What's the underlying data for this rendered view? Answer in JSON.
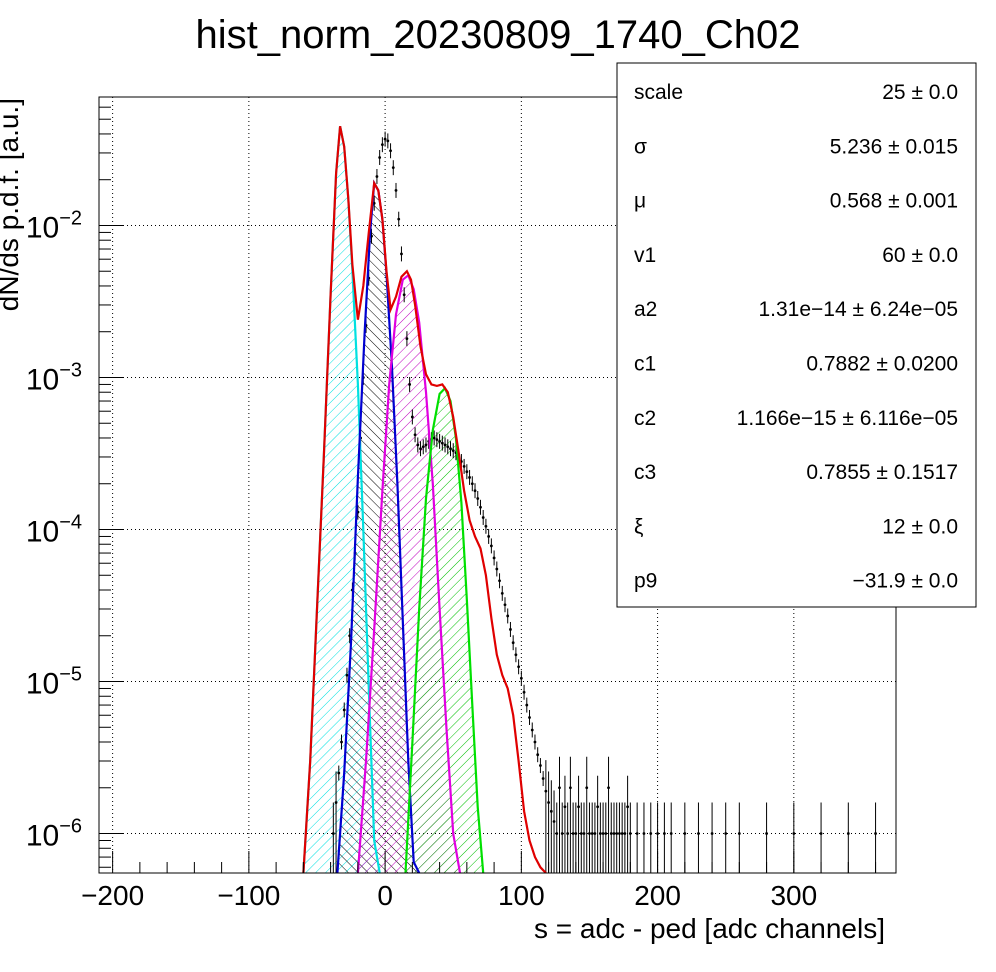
{
  "chart_data": {
    "type": "scatter",
    "title": "hist_norm_20230809_1740_Ch02",
    "xlabel": "s = adc - ped [adc channels]",
    "ylabel": "dN/ds p.d.f. [a.u.]",
    "xlim": [
      -210,
      375
    ],
    "ylim": [
      5.5e-07,
      0.07
    ],
    "yscale": "log",
    "grid": true,
    "x_ticks": [
      -200,
      -100,
      0,
      100,
      200,
      300
    ],
    "x_tick_labels": [
      "−200",
      "−100",
      "0",
      "100",
      "200",
      "300"
    ],
    "y_ticks": [
      1e-06,
      1e-05,
      0.0001,
      0.001,
      0.01
    ],
    "y_tick_labels": [
      {
        "base": "10",
        "exp": "−6"
      },
      {
        "base": "10",
        "exp": "−5"
      },
      {
        "base": "10",
        "exp": "−4"
      },
      {
        "base": "10",
        "exp": "−3"
      },
      {
        "base": "10",
        "exp": "−2"
      }
    ],
    "stats_box": {
      "placement": "top-right",
      "rows": [
        {
          "name": "scale",
          "value": "25 ± 0.0"
        },
        {
          "name": "σ",
          "value": "5.236 ± 0.015"
        },
        {
          "name": "μ",
          "value": "0.568 ± 0.001"
        },
        {
          "name": "v1",
          "value": "60 ± 0.0"
        },
        {
          "name": "a2",
          "value": "1.31e−14 ± 6.24e−05"
        },
        {
          "name": "c1",
          "value": "0.7882 ± 0.0200"
        },
        {
          "name": "c2",
          "value": "1.166e−15 ± 6.116e−05"
        },
        {
          "name": "c3",
          "value": "0.7855 ± 0.1517"
        },
        {
          "name": "ξ",
          "value": "12 ± 0.0"
        },
        {
          "name": "p9",
          "value": "−31.9 ± 0.0"
        }
      ]
    },
    "series": [
      {
        "kind": "points",
        "color": "#000000",
        "x": [
          -38,
          -36,
          -34,
          -32,
          -30,
          -28,
          -26,
          -24,
          -22,
          -20,
          -18,
          -16,
          -14,
          -12,
          -10,
          -8,
          -6,
          -4,
          -2,
          0,
          2,
          4,
          6,
          8,
          10,
          12,
          14,
          16,
          18,
          20,
          22,
          24,
          26,
          28,
          30,
          32,
          34,
          36,
          38,
          40,
          42,
          44,
          46,
          48,
          50,
          52,
          54,
          56,
          58,
          60,
          62,
          64,
          66,
          68,
          70,
          72,
          74,
          76,
          78,
          80,
          82,
          84,
          86,
          88,
          90,
          92,
          94,
          96,
          98,
          100,
          102,
          104,
          106,
          108,
          110,
          112,
          114,
          116,
          118,
          120,
          122,
          124,
          126,
          128,
          130,
          132,
          134,
          136,
          138,
          140,
          142,
          144,
          146,
          148,
          150,
          152,
          154,
          156,
          158,
          160,
          162,
          164,
          166,
          168,
          170,
          172,
          174,
          176,
          178,
          180,
          185,
          190,
          195,
          200,
          205,
          210,
          220,
          230,
          240,
          250,
          260,
          280,
          300,
          320,
          340,
          360
        ],
        "y": [
          1e-06,
          1.6e-06,
          2.5e-06,
          4e-06,
          6.5e-06,
          1.1e-05,
          2e-05,
          4e-05,
          7e-05,
          0.00013,
          0.0004,
          0.001,
          0.0022,
          0.0045,
          0.0085,
          0.014,
          0.021,
          0.028,
          0.034,
          0.037,
          0.036,
          0.031,
          0.024,
          0.017,
          0.011,
          0.0065,
          0.0035,
          0.0018,
          0.0009,
          0.00055,
          0.00042,
          0.00036,
          0.00034,
          0.00035,
          0.00036,
          0.00038,
          0.00039,
          0.0004,
          0.00039,
          0.00038,
          0.00037,
          0.00036,
          0.00035,
          0.00034,
          0.00033,
          0.00032,
          0.0003,
          0.00028,
          0.00026,
          0.00024,
          0.00022,
          0.0002,
          0.00018,
          0.00016,
          0.00014,
          0.00012,
          0.000105,
          9e-05,
          7.8e-05,
          6.5e-05,
          5.5e-05,
          4.6e-05,
          3.8e-05,
          3.2e-05,
          2.7e-05,
          2.2e-05,
          1.8e-05,
          1.5e-05,
          1.25e-05,
          1.05e-05,
          8.5e-06,
          7e-06,
          5.8e-06,
          4.8e-06,
          4e-06,
          3.3e-06,
          2.8e-06,
          2.3e-06,
          1.9e-06,
          1.6e-06,
          1.4e-06,
          1.2e-06,
          1e-06,
          2e-06,
          1e-06,
          1.5e-06,
          1e-06,
          2e-06,
          1e-06,
          1e-06,
          1.5e-06,
          1e-06,
          1e-06,
          2e-06,
          1e-06,
          1e-06,
          1e-06,
          1.5e-06,
          1e-06,
          1e-06,
          1e-06,
          2e-06,
          1e-06,
          1e-06,
          1e-06,
          1e-06,
          1e-06,
          1e-06,
          1.5e-06,
          1e-06,
          1e-06,
          1e-06,
          1e-06,
          1e-06,
          1e-06,
          1e-06,
          1e-06,
          1e-06,
          1e-06,
          1e-06,
          1e-06,
          1e-06,
          1e-06,
          1e-06,
          1e-06,
          1e-06
        ]
      },
      {
        "kind": "component",
        "color": "#00e0e0",
        "fill": "hatch",
        "x": [
          -60,
          -55,
          -50,
          -45,
          -40,
          -36,
          -33,
          -30,
          -27,
          -24,
          -20,
          -16,
          -12,
          -8,
          -4
        ],
        "y": [
          5.5e-07,
          3e-06,
          3e-05,
          0.0003,
          0.0035,
          0.022,
          0.045,
          0.033,
          0.015,
          0.005,
          0.0009,
          0.0001,
          9e-06,
          9e-07,
          5.5e-07
        ]
      },
      {
        "kind": "component",
        "color": "#0000d0",
        "fill": "hatch",
        "x": [
          -35,
          -30,
          -25,
          -20,
          -15,
          -11,
          -8,
          -5,
          -2,
          1,
          5,
          9,
          13,
          17,
          21,
          25
        ],
        "y": [
          5.5e-07,
          2.5e-06,
          1.8e-05,
          0.00022,
          0.002,
          0.009,
          0.019,
          0.017,
          0.011,
          0.0048,
          0.0012,
          0.0002,
          2.5e-05,
          3e-06,
          6.5e-07,
          5.5e-07
        ]
      },
      {
        "kind": "component",
        "color": "#e000e0",
        "fill": "hatch",
        "x": [
          -20,
          -14,
          -8,
          -2,
          3,
          8,
          13,
          17,
          21,
          25,
          30,
          35,
          40,
          45,
          50,
          55
        ],
        "y": [
          5.5e-07,
          3e-06,
          2.2e-05,
          0.00018,
          0.0009,
          0.0026,
          0.0044,
          0.0047,
          0.0038,
          0.0023,
          0.0008,
          0.0002,
          3e-05,
          5e-06,
          1e-06,
          5.5e-07
        ]
      },
      {
        "kind": "component",
        "color": "#00e000",
        "fill": "hatch",
        "x": [
          15,
          20,
          25,
          30,
          35,
          40,
          44,
          48,
          52,
          56,
          60,
          64,
          68,
          72
        ],
        "y": [
          5.5e-07,
          4e-06,
          3e-05,
          0.00016,
          0.00045,
          0.00078,
          0.00085,
          0.0007,
          0.0004,
          0.00015,
          3.5e-05,
          7e-06,
          1.5e-06,
          5.5e-07
        ]
      },
      {
        "kind": "total",
        "color": "#e00000",
        "x": [
          -60,
          -55,
          -50,
          -45,
          -40,
          -36,
          -33,
          -30,
          -27,
          -24,
          -20,
          -16,
          -12,
          -8,
          -5,
          -2,
          1,
          4,
          8,
          12,
          16,
          19,
          22,
          26,
          30,
          34,
          38,
          42,
          46,
          50,
          54,
          58,
          62,
          66,
          70,
          74,
          78,
          82,
          86,
          90,
          94,
          98,
          102,
          106,
          110,
          114,
          118
        ],
        "y": [
          5.5e-07,
          3e-06,
          3e-05,
          0.0003,
          0.0035,
          0.022,
          0.045,
          0.033,
          0.015,
          0.0055,
          0.0024,
          0.004,
          0.009,
          0.019,
          0.017,
          0.011,
          0.005,
          0.0028,
          0.0034,
          0.0046,
          0.005,
          0.0044,
          0.003,
          0.0016,
          0.00105,
          0.0009,
          0.00088,
          0.0009,
          0.0008,
          0.00055,
          0.00032,
          0.00018,
          0.000115,
          9e-05,
          7.5e-05,
          5e-05,
          2.6e-05,
          1.5e-05,
          1.1e-05,
          9e-06,
          6e-06,
          3e-06,
          1.4e-06,
          9e-07,
          7e-07,
          6e-07,
          5.5e-07
        ]
      }
    ]
  }
}
